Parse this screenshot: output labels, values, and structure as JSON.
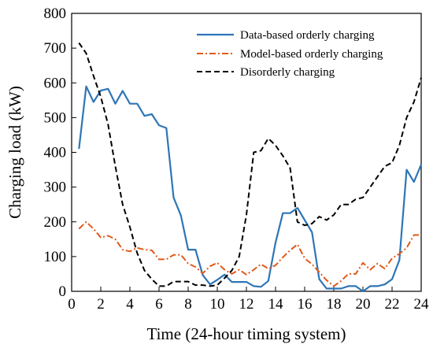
{
  "chart_data": {
    "type": "line",
    "xlabel": "Time (24-hour timing system)",
    "ylabel": "Charging load (kW)",
    "xlim": [
      0,
      24
    ],
    "ylim": [
      0,
      800
    ],
    "xticks": [
      "0",
      "2",
      "4",
      "6",
      "8",
      "10",
      "12",
      "14",
      "16",
      "18",
      "20",
      "22",
      "24"
    ],
    "yticks": [
      "0",
      "100",
      "200",
      "300",
      "400",
      "500",
      "600",
      "700",
      "800"
    ],
    "grid": false,
    "legend_position": "top-right",
    "series": [
      {
        "name": "Data-based orderly charging",
        "color": "#2e75b6",
        "style": "solid",
        "x": [
          0.5,
          1,
          1.5,
          2,
          2.5,
          3,
          3.5,
          4,
          4.5,
          5,
          5.5,
          6,
          6.5,
          7,
          7.5,
          8,
          8.5,
          9,
          9.5,
          10,
          10.5,
          11,
          11.5,
          12,
          12.5,
          13,
          13.5,
          14,
          14.5,
          15,
          15.5,
          16,
          16.5,
          17,
          17.5,
          18,
          18.5,
          19,
          19.5,
          20,
          20.5,
          21,
          21.5,
          22,
          22.5,
          23,
          23.5,
          24
        ],
        "y": [
          410,
          590,
          545,
          578,
          583,
          540,
          577,
          540,
          540,
          505,
          510,
          478,
          470,
          270,
          218,
          120,
          120,
          47,
          20,
          33,
          48,
          27,
          27,
          27,
          15,
          13,
          30,
          140,
          225,
          225,
          240,
          205,
          170,
          35,
          8,
          8,
          8,
          15,
          15,
          0,
          15,
          15,
          20,
          35,
          90,
          350,
          315,
          365
        ]
      },
      {
        "name": "Model-based orderly charging",
        "color": "#e05a1a",
        "style": "dash-dot",
        "x": [
          0.5,
          1,
          1.5,
          2,
          2.5,
          3,
          3.5,
          4,
          4.5,
          5,
          5.5,
          6,
          6.5,
          7,
          7.5,
          8,
          8.5,
          9,
          9.5,
          10,
          10.5,
          11,
          11.5,
          12,
          12.5,
          13,
          13.5,
          14,
          14.5,
          15,
          15.5,
          16,
          16.5,
          17,
          17.5,
          18,
          18.5,
          19,
          19.5,
          20,
          20.5,
          21,
          21.5,
          22,
          22.5,
          23,
          23.5,
          24
        ],
        "y": [
          180,
          200,
          180,
          155,
          160,
          150,
          120,
          115,
          125,
          120,
          118,
          92,
          92,
          105,
          105,
          80,
          70,
          52,
          72,
          82,
          62,
          50,
          62,
          48,
          62,
          78,
          65,
          75,
          98,
          118,
          135,
          95,
          78,
          55,
          32,
          15,
          30,
          50,
          50,
          82,
          62,
          80,
          65,
          95,
          108,
          125,
          162,
          162
        ]
      },
      {
        "name": "Disorderly charging",
        "color": "#000000",
        "style": "dashed",
        "x": [
          0.5,
          1,
          1.5,
          2,
          2.5,
          3,
          3.5,
          4,
          4.5,
          5,
          5.5,
          6,
          6.5,
          7,
          7.5,
          8,
          8.5,
          9,
          9.5,
          10,
          10.5,
          11,
          11.5,
          12,
          12.5,
          13,
          13.5,
          14,
          14.5,
          15,
          15.5,
          16,
          16.5,
          17,
          17.5,
          18,
          18.5,
          19,
          19.5,
          20,
          20.5,
          21,
          21.5,
          22,
          22.5,
          23,
          23.5,
          24
        ],
        "y": [
          715,
          685,
          620,
          560,
          480,
          360,
          250,
          185,
          110,
          60,
          35,
          15,
          15,
          28,
          28,
          28,
          18,
          18,
          15,
          18,
          38,
          60,
          100,
          220,
          400,
          405,
          440,
          420,
          390,
          355,
          200,
          190,
          195,
          215,
          205,
          220,
          250,
          250,
          265,
          270,
          300,
          330,
          360,
          370,
          420,
          500,
          545,
          615
        ]
      }
    ]
  }
}
